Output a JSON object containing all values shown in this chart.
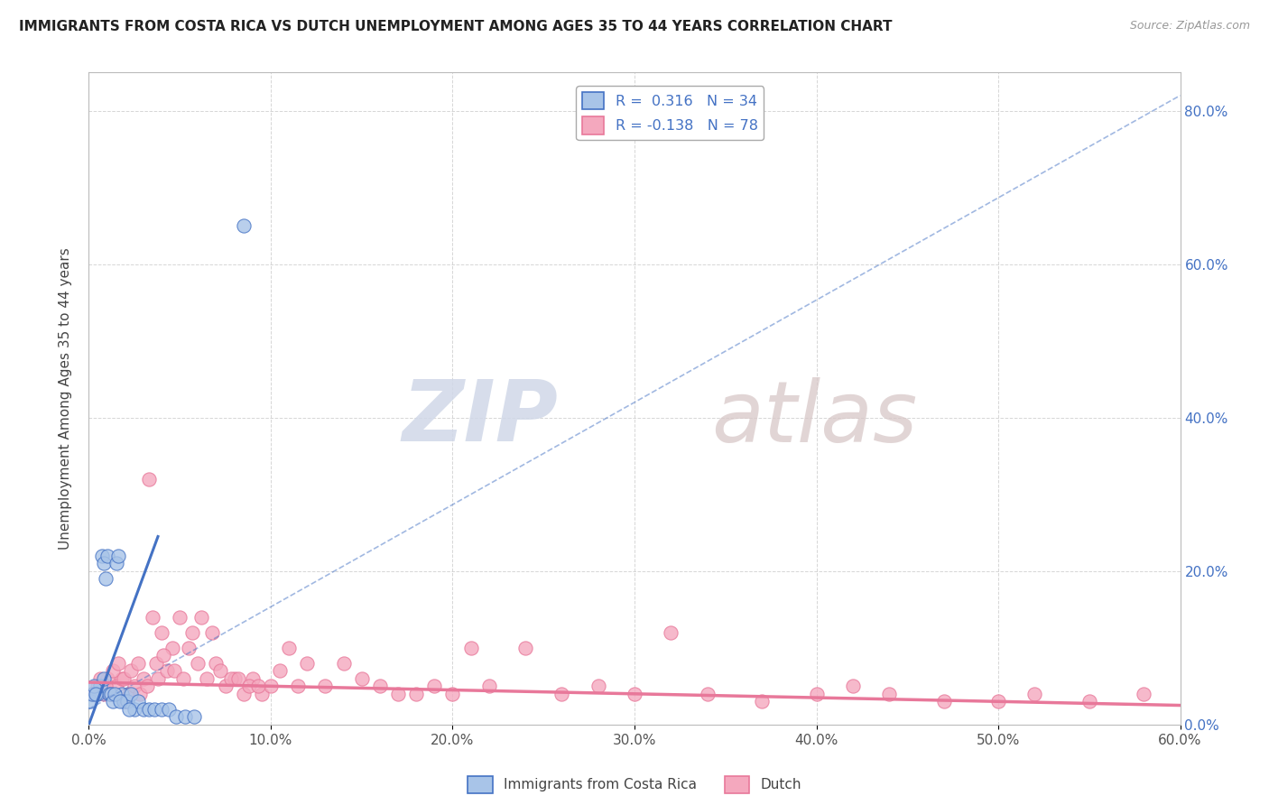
{
  "title": "IMMIGRANTS FROM COSTA RICA VS DUTCH UNEMPLOYMENT AMONG AGES 35 TO 44 YEARS CORRELATION CHART",
  "source_text": "Source: ZipAtlas.com",
  "ylabel": "Unemployment Among Ages 35 to 44 years",
  "xlim": [
    0.0,
    0.6
  ],
  "ylim": [
    0.0,
    0.85
  ],
  "xticks": [
    0.0,
    0.1,
    0.2,
    0.3,
    0.4,
    0.5,
    0.6
  ],
  "xticklabels": [
    "0.0%",
    "10.0%",
    "20.0%",
    "30.0%",
    "40.0%",
    "50.0%",
    "60.0%"
  ],
  "yticks": [
    0.0,
    0.2,
    0.4,
    0.6,
    0.8
  ],
  "yticklabels": [
    "0.0%",
    "20.0%",
    "40.0%",
    "60.0%",
    "80.0%"
  ],
  "legend_r1": "R =  0.316   N = 34",
  "legend_r2": "R = -0.138   N = 78",
  "blue_color": "#A8C4E8",
  "pink_color": "#F4A8BE",
  "blue_line_color": "#4472C4",
  "pink_line_color": "#E8789A",
  "watermark_zip": "ZIP",
  "watermark_atlas": "atlas",
  "blue_scatter": {
    "x": [
      0.005,
      0.006,
      0.007,
      0.008,
      0.009,
      0.01,
      0.011,
      0.012,
      0.013,
      0.015,
      0.016,
      0.018,
      0.019,
      0.021,
      0.023,
      0.025,
      0.027,
      0.03,
      0.033,
      0.036,
      0.04,
      0.044,
      0.048,
      0.053,
      0.058,
      0.001,
      0.002,
      0.003,
      0.004,
      0.008,
      0.014,
      0.017,
      0.022,
      0.085
    ],
    "y": [
      0.04,
      0.05,
      0.22,
      0.21,
      0.19,
      0.22,
      0.04,
      0.04,
      0.03,
      0.21,
      0.22,
      0.04,
      0.03,
      0.03,
      0.04,
      0.02,
      0.03,
      0.02,
      0.02,
      0.02,
      0.02,
      0.02,
      0.01,
      0.01,
      0.01,
      0.03,
      0.04,
      0.05,
      0.04,
      0.06,
      0.04,
      0.03,
      0.02,
      0.65
    ]
  },
  "pink_scatter": {
    "x": [
      0.003,
      0.005,
      0.008,
      0.01,
      0.012,
      0.015,
      0.018,
      0.02,
      0.022,
      0.025,
      0.028,
      0.03,
      0.032,
      0.035,
      0.038,
      0.04,
      0.043,
      0.046,
      0.05,
      0.055,
      0.06,
      0.065,
      0.07,
      0.075,
      0.08,
      0.085,
      0.09,
      0.095,
      0.1,
      0.11,
      0.12,
      0.13,
      0.14,
      0.15,
      0.16,
      0.17,
      0.18,
      0.19,
      0.2,
      0.21,
      0.22,
      0.24,
      0.26,
      0.28,
      0.3,
      0.32,
      0.34,
      0.37,
      0.4,
      0.42,
      0.44,
      0.47,
      0.5,
      0.52,
      0.55,
      0.58,
      0.006,
      0.009,
      0.013,
      0.016,
      0.019,
      0.023,
      0.027,
      0.033,
      0.037,
      0.041,
      0.047,
      0.052,
      0.057,
      0.062,
      0.068,
      0.072,
      0.078,
      0.082,
      0.088,
      0.093,
      0.105,
      0.115
    ],
    "y": [
      0.04,
      0.05,
      0.04,
      0.06,
      0.04,
      0.05,
      0.06,
      0.03,
      0.04,
      0.05,
      0.04,
      0.06,
      0.05,
      0.14,
      0.06,
      0.12,
      0.07,
      0.1,
      0.14,
      0.1,
      0.08,
      0.06,
      0.08,
      0.05,
      0.06,
      0.04,
      0.06,
      0.04,
      0.05,
      0.1,
      0.08,
      0.05,
      0.08,
      0.06,
      0.05,
      0.04,
      0.04,
      0.05,
      0.04,
      0.1,
      0.05,
      0.1,
      0.04,
      0.05,
      0.04,
      0.12,
      0.04,
      0.03,
      0.04,
      0.05,
      0.04,
      0.03,
      0.03,
      0.04,
      0.03,
      0.04,
      0.06,
      0.05,
      0.07,
      0.08,
      0.06,
      0.07,
      0.08,
      0.32,
      0.08,
      0.09,
      0.07,
      0.06,
      0.12,
      0.14,
      0.12,
      0.07,
      0.06,
      0.06,
      0.05,
      0.05,
      0.07,
      0.05
    ]
  },
  "blue_trendline_solid": {
    "x": [
      0.0,
      0.038
    ],
    "y": [
      0.0,
      0.245
    ]
  },
  "blue_trendline_dashed": {
    "x": [
      0.0,
      0.6
    ],
    "y": [
      0.02,
      0.82
    ]
  },
  "pink_trendline": {
    "x": [
      0.0,
      0.6
    ],
    "y": [
      0.055,
      0.025
    ]
  }
}
